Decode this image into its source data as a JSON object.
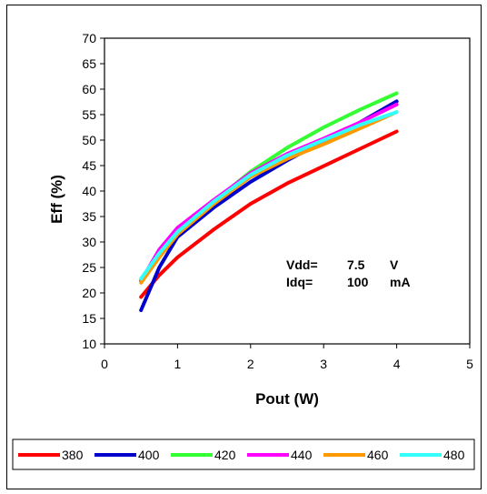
{
  "chart_data": {
    "type": "line",
    "title": "",
    "xlabel": "Pout (W)",
    "ylabel": "Eff (%)",
    "xlim": [
      0,
      5
    ],
    "ylim": [
      10,
      70
    ],
    "xticks": [
      "0",
      "1",
      "2",
      "3",
      "4",
      "5"
    ],
    "yticks": [
      "10",
      "15",
      "20",
      "25",
      "30",
      "35",
      "40",
      "45",
      "50",
      "55",
      "60",
      "65",
      "70"
    ],
    "grid": false,
    "legend_position": "bottom",
    "annotations": {
      "vdd_label": "Vdd=",
      "vdd_value": "7.5",
      "vdd_unit": "V",
      "idq_label": "Idq=",
      "idq_value": "100",
      "idq_unit": "mA"
    },
    "series": [
      {
        "name": "380",
        "color": "#ff0000",
        "points": [
          [
            0.5,
            19.2
          ],
          [
            0.75,
            23.5
          ],
          [
            1.0,
            27.0
          ],
          [
            1.5,
            32.5
          ],
          [
            2.0,
            37.5
          ],
          [
            2.5,
            41.5
          ],
          [
            3.0,
            44.9
          ],
          [
            3.5,
            48.3
          ],
          [
            4.0,
            51.7
          ]
        ]
      },
      {
        "name": "400",
        "color": "#0000cc",
        "points": [
          [
            0.5,
            16.6
          ],
          [
            0.75,
            25.0
          ],
          [
            1.0,
            31.0
          ],
          [
            1.5,
            36.8
          ],
          [
            2.0,
            41.8
          ],
          [
            2.5,
            46.0
          ],
          [
            3.0,
            49.8
          ],
          [
            3.5,
            53.5
          ],
          [
            4.0,
            57.6
          ]
        ]
      },
      {
        "name": "420",
        "color": "#33ff33",
        "points": [
          [
            0.5,
            22.5
          ],
          [
            0.75,
            27.5
          ],
          [
            1.0,
            32.0
          ],
          [
            1.5,
            38.0
          ],
          [
            2.0,
            43.8
          ],
          [
            2.5,
            48.5
          ],
          [
            3.0,
            52.5
          ],
          [
            3.5,
            56.0
          ],
          [
            4.0,
            59.2
          ]
        ]
      },
      {
        "name": "440",
        "color": "#ff00ff",
        "points": [
          [
            0.5,
            22.4
          ],
          [
            0.75,
            28.5
          ],
          [
            1.0,
            32.8
          ],
          [
            1.5,
            38.3
          ],
          [
            2.0,
            43.5
          ],
          [
            2.5,
            47.3
          ],
          [
            3.0,
            50.3
          ],
          [
            3.5,
            53.5
          ],
          [
            4.0,
            57.0
          ]
        ]
      },
      {
        "name": "460",
        "color": "#ff9900",
        "points": [
          [
            0.5,
            22.0
          ],
          [
            0.75,
            27.0
          ],
          [
            1.0,
            31.5
          ],
          [
            1.5,
            37.5
          ],
          [
            2.0,
            42.8
          ],
          [
            2.5,
            46.3
          ],
          [
            3.0,
            49.2
          ],
          [
            3.5,
            52.3
          ],
          [
            4.0,
            55.5
          ]
        ]
      },
      {
        "name": "480",
        "color": "#33ffff",
        "points": [
          [
            0.5,
            22.8
          ],
          [
            0.75,
            27.8
          ],
          [
            1.0,
            32.0
          ],
          [
            1.5,
            38.0
          ],
          [
            2.0,
            43.2
          ],
          [
            2.5,
            47.0
          ],
          [
            3.0,
            50.0
          ],
          [
            3.5,
            53.0
          ],
          [
            4.0,
            55.5
          ]
        ]
      }
    ]
  }
}
